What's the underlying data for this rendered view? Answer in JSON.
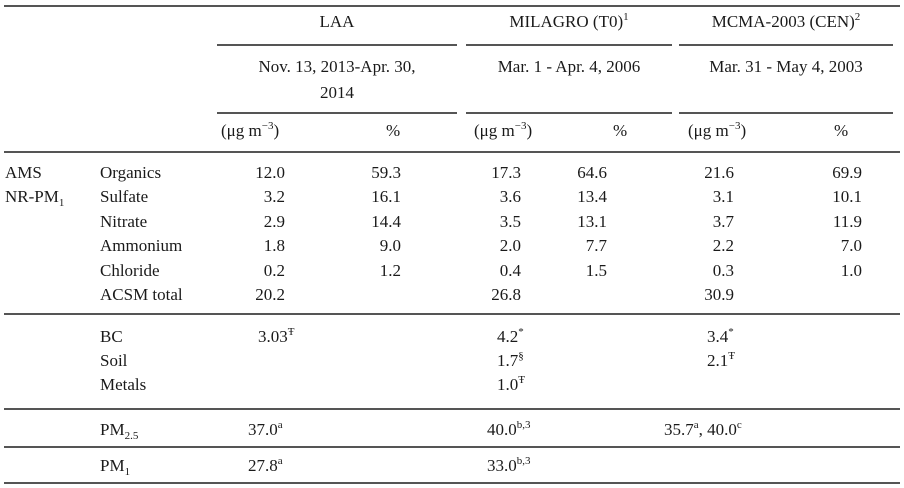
{
  "header": {
    "groups": [
      {
        "name": "LAA",
        "sup": "",
        "period_line1": "Nov. 13, 2013-Apr. 30,",
        "period_line2": "2014"
      },
      {
        "name": "MILAGRO (T0)",
        "sup": "1",
        "period_line1": "Mar. 1 - Apr. 4, 2006",
        "period_line2": ""
      },
      {
        "name": "MCMA-2003 (CEN)",
        "sup": "2",
        "period_line1": "Mar. 31 - May 4, 2003",
        "period_line2": ""
      }
    ],
    "unit_label": "(μg m",
    "unit_exp": "−3",
    "unit_close": ")",
    "pct_label": "%"
  },
  "ams": {
    "label1": "AMS",
    "label2": "NR-PM",
    "label2_sub": "1",
    "rows": [
      {
        "species": "Organics",
        "laa": "12.0",
        "laa_pct": "59.3",
        "mil": "17.3",
        "mil_pct": "64.6",
        "mcma": "21.6",
        "mcma_pct": "69.9"
      },
      {
        "species": "Sulfate",
        "laa": "3.2",
        "laa_pct": "16.1",
        "mil": "3.6",
        "mil_pct": "13.4",
        "mcma": "3.1",
        "mcma_pct": "10.1"
      },
      {
        "species": "Nitrate",
        "laa": "2.9",
        "laa_pct": "14.4",
        "mil": "3.5",
        "mil_pct": "13.1",
        "mcma": "3.7",
        "mcma_pct": "11.9"
      },
      {
        "species": "Ammonium",
        "laa": "1.8",
        "laa_pct": "9.0",
        "mil": "2.0",
        "mil_pct": "7.7",
        "mcma": "2.2",
        "mcma_pct": "7.0"
      },
      {
        "species": "Chloride",
        "laa": "0.2",
        "laa_pct": "1.2",
        "mil": "0.4",
        "mil_pct": "1.5",
        "mcma": "0.3",
        "mcma_pct": "1.0"
      },
      {
        "species": "ACSM total",
        "laa": "20.2",
        "laa_pct": "",
        "mil": "26.8",
        "mil_pct": "",
        "mcma": "30.9",
        "mcma_pct": ""
      }
    ]
  },
  "other": {
    "bc": {
      "label": "BC",
      "laa": "3.03",
      "laa_sup": "Ŧ",
      "mil": "4.2",
      "mil_sup": "*",
      "mcma": "3.4",
      "mcma_sup": "*"
    },
    "soil": {
      "label": "Soil",
      "mil": "1.7",
      "mil_sup": "§",
      "mcma": "2.1",
      "mcma_sup": "Ŧ"
    },
    "metals": {
      "label": "Metals",
      "mil": "1.0",
      "mil_sup": "Ŧ"
    }
  },
  "pm25": {
    "label": "PM",
    "label_sub": "2.5",
    "laa": "37.0",
    "laa_sup": "a",
    "mil": "40.0",
    "mil_sup": "b,3",
    "mcma1": "35.7",
    "mcma1_sup": "a",
    "mcma_sep": ", ",
    "mcma2": "40.0",
    "mcma2_sup": "c"
  },
  "pm1": {
    "label": "PM",
    "label_sub": "1",
    "laa": "27.8",
    "laa_sup": "a",
    "mil": "33.0",
    "mil_sup": "b,3"
  }
}
